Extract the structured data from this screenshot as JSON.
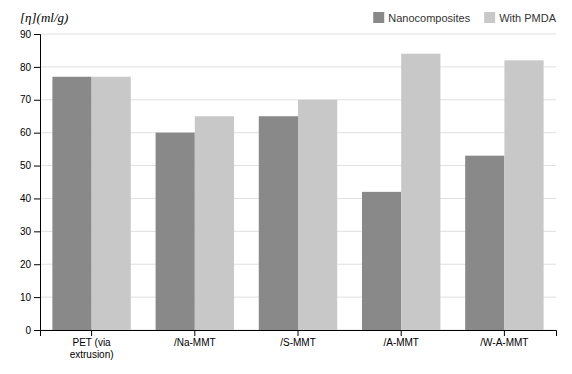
{
  "chart_data": {
    "type": "bar",
    "ylabel": "[η](ml/g)",
    "categories": [
      "PET (via\nextrusion)",
      "/Na-MMT",
      "/S-MMT",
      "/A-MMT",
      "/W-A-MMT"
    ],
    "series": [
      {
        "name": "Nanocomposites",
        "color": "#898989",
        "values": [
          77,
          60,
          65,
          42,
          53
        ]
      },
      {
        "name": "With PMDA",
        "color": "#c8c8c8",
        "values": [
          77,
          65,
          70,
          84,
          82
        ]
      }
    ],
    "ylim": [
      0,
      90
    ],
    "yticks": [
      0,
      10,
      20,
      30,
      40,
      50,
      60,
      70,
      80,
      90
    ],
    "grid": true,
    "legend": "upper right"
  }
}
